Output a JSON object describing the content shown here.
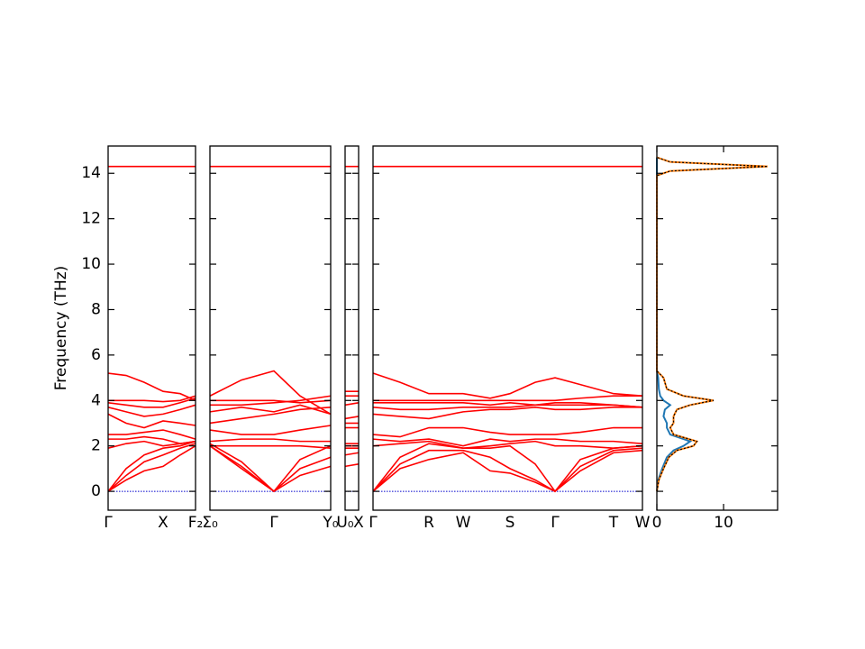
{
  "chart_data": {
    "type": "band-structure",
    "ylabel": "Frequency (THz)",
    "ylim": [
      -0.83,
      15.2
    ],
    "yticks": [
      0,
      2,
      4,
      6,
      8,
      10,
      12,
      14
    ],
    "band_color": "#ff0000",
    "zero_line": {
      "value": 0,
      "color": "#0000cc"
    },
    "panels": [
      {
        "xlim": [
          0,
          0.97
        ],
        "xticks": [
          {
            "value": 0,
            "label": "Γ"
          },
          {
            "value": 0.61,
            "label": "X"
          },
          {
            "value": 0.97,
            "label": "F₂"
          }
        ],
        "x": [
          0,
          0.2,
          0.4,
          0.61,
          0.8,
          0.97
        ],
        "bands": [
          [
            0,
            0.5,
            0.9,
            1.1,
            1.6,
            2.0
          ],
          [
            0,
            0.7,
            1.3,
            1.6,
            1.9,
            2.1
          ],
          [
            0,
            1.0,
            1.6,
            1.9,
            2.0,
            2.2
          ],
          [
            1.9,
            2.1,
            2.2,
            2.0,
            2.1,
            2.2
          ],
          [
            2.3,
            2.3,
            2.4,
            2.3,
            2.1,
            2.2
          ],
          [
            2.5,
            2.5,
            2.6,
            2.7,
            2.5,
            2.3
          ],
          [
            3.4,
            3.0,
            2.8,
            3.1,
            3.0,
            2.9
          ],
          [
            3.7,
            3.5,
            3.3,
            3.4,
            3.6,
            3.8
          ],
          [
            3.9,
            3.8,
            3.7,
            3.7,
            3.9,
            4.1
          ],
          [
            4.0,
            4.0,
            4.0,
            3.95,
            4.0,
            4.2
          ],
          [
            5.2,
            5.1,
            4.8,
            4.4,
            4.3,
            4.0
          ],
          [
            14.3,
            14.3,
            14.3,
            14.3,
            14.3,
            14.3
          ]
        ]
      },
      {
        "xlim": [
          0,
          1.34
        ],
        "xticks": [
          {
            "value": 0,
            "label": "Σ₀"
          },
          {
            "value": 0.71,
            "label": "Γ"
          },
          {
            "value": 1.34,
            "label": "Y₀"
          }
        ],
        "x": [
          0,
          0.35,
          0.71,
          1.0,
          1.34
        ],
        "bands": [
          [
            2.0,
            1.0,
            0,
            0.7,
            1.1
          ],
          [
            2.0,
            1.1,
            0,
            1.0,
            1.5
          ],
          [
            2.1,
            1.3,
            0,
            1.4,
            2.0
          ],
          [
            2.0,
            2.0,
            2.0,
            2.0,
            1.9
          ],
          [
            2.2,
            2.3,
            2.3,
            2.2,
            2.2
          ],
          [
            2.7,
            2.5,
            2.5,
            2.7,
            2.9
          ],
          [
            3.0,
            3.2,
            3.4,
            3.6,
            3.7
          ],
          [
            3.5,
            3.7,
            3.5,
            3.8,
            3.4
          ],
          [
            3.8,
            3.8,
            3.9,
            4.0,
            4.2
          ],
          [
            4.0,
            4.0,
            4.0,
            3.9,
            4.0
          ],
          [
            4.2,
            4.9,
            5.3,
            4.2,
            3.4
          ],
          [
            14.3,
            14.3,
            14.3,
            14.3,
            14.3
          ]
        ]
      },
      {
        "xlim": [
          0,
          0.15
        ],
        "xticks": [
          {
            "value": 0,
            "label": "U₀"
          },
          {
            "value": 0.15,
            "label": "X"
          }
        ],
        "x": [
          0,
          0.15
        ],
        "bands": [
          [
            1.1,
            1.2
          ],
          [
            1.6,
            1.7
          ],
          [
            1.9,
            1.9
          ],
          [
            2.0,
            2.0
          ],
          [
            2.1,
            2.1
          ],
          [
            2.8,
            2.8
          ],
          [
            3.0,
            3.0
          ],
          [
            3.2,
            3.3
          ],
          [
            3.8,
            3.9
          ],
          [
            4.2,
            4.2
          ],
          [
            4.4,
            4.4
          ],
          [
            14.3,
            14.3
          ]
        ]
      },
      {
        "xlim": [
          0,
          2.99
        ],
        "xticks": [
          {
            "value": 0,
            "label": "Γ"
          },
          {
            "value": 0.62,
            "label": "R"
          },
          {
            "value": 1.0,
            "label": "W"
          },
          {
            "value": 1.52,
            "label": "S"
          },
          {
            "value": 2.02,
            "label": "Γ"
          },
          {
            "value": 2.67,
            "label": "T"
          },
          {
            "value": 2.99,
            "label": "W"
          }
        ],
        "x": [
          0,
          0.3,
          0.62,
          1.0,
          1.3,
          1.52,
          1.8,
          2.02,
          2.3,
          2.67,
          2.99
        ],
        "bands": [
          [
            0,
            1.0,
            1.4,
            1.7,
            0.9,
            0.8,
            0.4,
            0,
            0.9,
            1.7,
            1.8
          ],
          [
            0,
            1.2,
            1.8,
            1.8,
            1.5,
            1.0,
            0.5,
            0,
            1.1,
            1.8,
            1.9
          ],
          [
            0,
            1.5,
            2.1,
            1.9,
            1.9,
            2.0,
            1.2,
            0,
            1.4,
            1.9,
            2.0
          ],
          [
            2.0,
            2.1,
            2.2,
            1.9,
            2.0,
            2.1,
            2.2,
            2.0,
            2.0,
            1.9,
            2.0
          ],
          [
            2.3,
            2.2,
            2.3,
            2.0,
            2.3,
            2.2,
            2.3,
            2.3,
            2.2,
            2.2,
            2.1
          ],
          [
            2.5,
            2.4,
            2.8,
            2.8,
            2.6,
            2.5,
            2.5,
            2.5,
            2.6,
            2.8,
            2.8
          ],
          [
            3.4,
            3.3,
            3.2,
            3.5,
            3.6,
            3.6,
            3.7,
            3.6,
            3.6,
            3.7,
            3.7
          ],
          [
            3.7,
            3.6,
            3.6,
            3.7,
            3.7,
            3.7,
            3.8,
            3.8,
            3.8,
            3.8,
            3.7
          ],
          [
            3.9,
            3.9,
            3.9,
            3.9,
            3.8,
            3.9,
            3.8,
            3.9,
            3.9,
            3.8,
            3.7
          ],
          [
            4.0,
            4.0,
            4.0,
            4.0,
            4.0,
            4.0,
            4.0,
            4.0,
            4.1,
            4.2,
            4.2
          ],
          [
            5.2,
            4.8,
            4.3,
            4.3,
            4.1,
            4.3,
            4.8,
            5.0,
            4.7,
            4.3,
            4.2
          ],
          [
            14.3,
            14.3,
            14.3,
            14.3,
            14.3,
            14.3,
            14.3,
            14.3,
            14.3,
            14.3,
            14.3
          ]
        ]
      }
    ],
    "dos": {
      "xlim": [
        0,
        18.1
      ],
      "xticks": [
        0,
        10
      ],
      "frequencies": [
        0,
        0.5,
        1.0,
        1.5,
        1.8,
        2.0,
        2.2,
        2.5,
        2.8,
        3.0,
        3.3,
        3.6,
        3.8,
        4.0,
        4.2,
        4.5,
        5.0,
        5.3,
        13.9,
        14.1,
        14.3,
        14.5,
        14.7
      ],
      "series": [
        {
          "color": "#1f77b4",
          "dashed": false,
          "values": [
            0,
            0.2,
            0.8,
            1.5,
            2.5,
            4,
            5,
            2,
            1.5,
            1.5,
            1,
            1.2,
            2,
            1,
            0.5,
            0.3,
            0.2,
            0,
            0,
            0,
            0,
            0,
            0
          ]
        },
        {
          "color": "#ff7f0e",
          "dashed": false,
          "values": [
            0,
            0.3,
            1.0,
            1.8,
            3,
            5.5,
            6,
            2.5,
            2,
            2.5,
            2.5,
            3,
            5,
            8.5,
            4,
            1.5,
            1,
            0,
            0,
            2,
            16.6,
            2,
            0
          ]
        },
        {
          "color": "#000000",
          "dashed": true,
          "values": [
            0,
            0.3,
            1.0,
            1.8,
            3,
            5.5,
            6,
            2.5,
            2,
            2.5,
            2.5,
            3,
            5,
            8.5,
            4,
            1.5,
            1,
            0,
            0,
            2,
            16.6,
            2,
            0
          ]
        }
      ]
    }
  }
}
